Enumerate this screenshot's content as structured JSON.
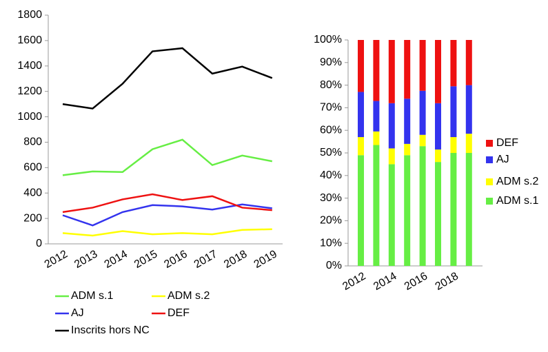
{
  "chart_data": [
    {
      "type": "line",
      "categories": [
        "2012",
        "2013",
        "2014",
        "2015",
        "2016",
        "2017",
        "2018",
        "2019"
      ],
      "ylim": [
        0,
        1800
      ],
      "yticks": [
        0,
        200,
        400,
        600,
        800,
        1000,
        1200,
        1400,
        1600,
        1800
      ],
      "series": [
        {
          "name": "ADM s.1",
          "color": "#66ee44",
          "values": [
            540,
            570,
            565,
            745,
            820,
            620,
            695,
            650
          ]
        },
        {
          "name": "ADM s.2",
          "color": "#ffff00",
          "values": [
            85,
            65,
            100,
            75,
            85,
            75,
            110,
            115
          ]
        },
        {
          "name": "AJ",
          "color": "#3333ee",
          "values": [
            225,
            145,
            250,
            305,
            295,
            270,
            310,
            280
          ]
        },
        {
          "name": "DEF",
          "color": "#ee1111",
          "values": [
            250,
            285,
            350,
            390,
            345,
            375,
            285,
            265
          ]
        },
        {
          "name": "Inscrits hors NC",
          "color": "#000000",
          "values": [
            1100,
            1065,
            1260,
            1515,
            1540,
            1340,
            1395,
            1305
          ]
        }
      ]
    },
    {
      "type": "bar",
      "stacked": true,
      "categories": [
        "2012",
        null,
        "2014",
        null,
        "2016",
        null,
        "2018",
        null
      ],
      "ylim": [
        0,
        100
      ],
      "yticks": [
        {
          "value": 0,
          "label": "0%"
        },
        {
          "value": 10,
          "label": "10%"
        },
        {
          "value": 20,
          "label": "20%"
        },
        {
          "value": 30,
          "label": "30%"
        },
        {
          "value": 40,
          "label": "40%"
        },
        {
          "value": 50,
          "label": "50%"
        },
        {
          "value": 60,
          "label": "60%"
        },
        {
          "value": 70,
          "label": "70%"
        },
        {
          "value": 80,
          "label": "80%"
        },
        {
          "value": 90,
          "label": "90%"
        },
        {
          "value": 100,
          "label": "100%"
        }
      ],
      "series": [
        {
          "name": "ADM s.1",
          "color": "#66ee44",
          "values": [
            49,
            53.5,
            45,
            49,
            53,
            46,
            50,
            50
          ]
        },
        {
          "name": "ADM s.2",
          "color": "#ffff00",
          "values": [
            8,
            6,
            7,
            5,
            5,
            5.5,
            7,
            8.5
          ]
        },
        {
          "name": "AJ",
          "color": "#3333ee",
          "values": [
            20,
            13.5,
            20,
            20,
            19.5,
            20.5,
            22.5,
            21.5
          ]
        },
        {
          "name": "DEF",
          "color": "#ee1111",
          "values": [
            23,
            27,
            28,
            26,
            22.5,
            28,
            20.5,
            20
          ]
        }
      ]
    }
  ]
}
